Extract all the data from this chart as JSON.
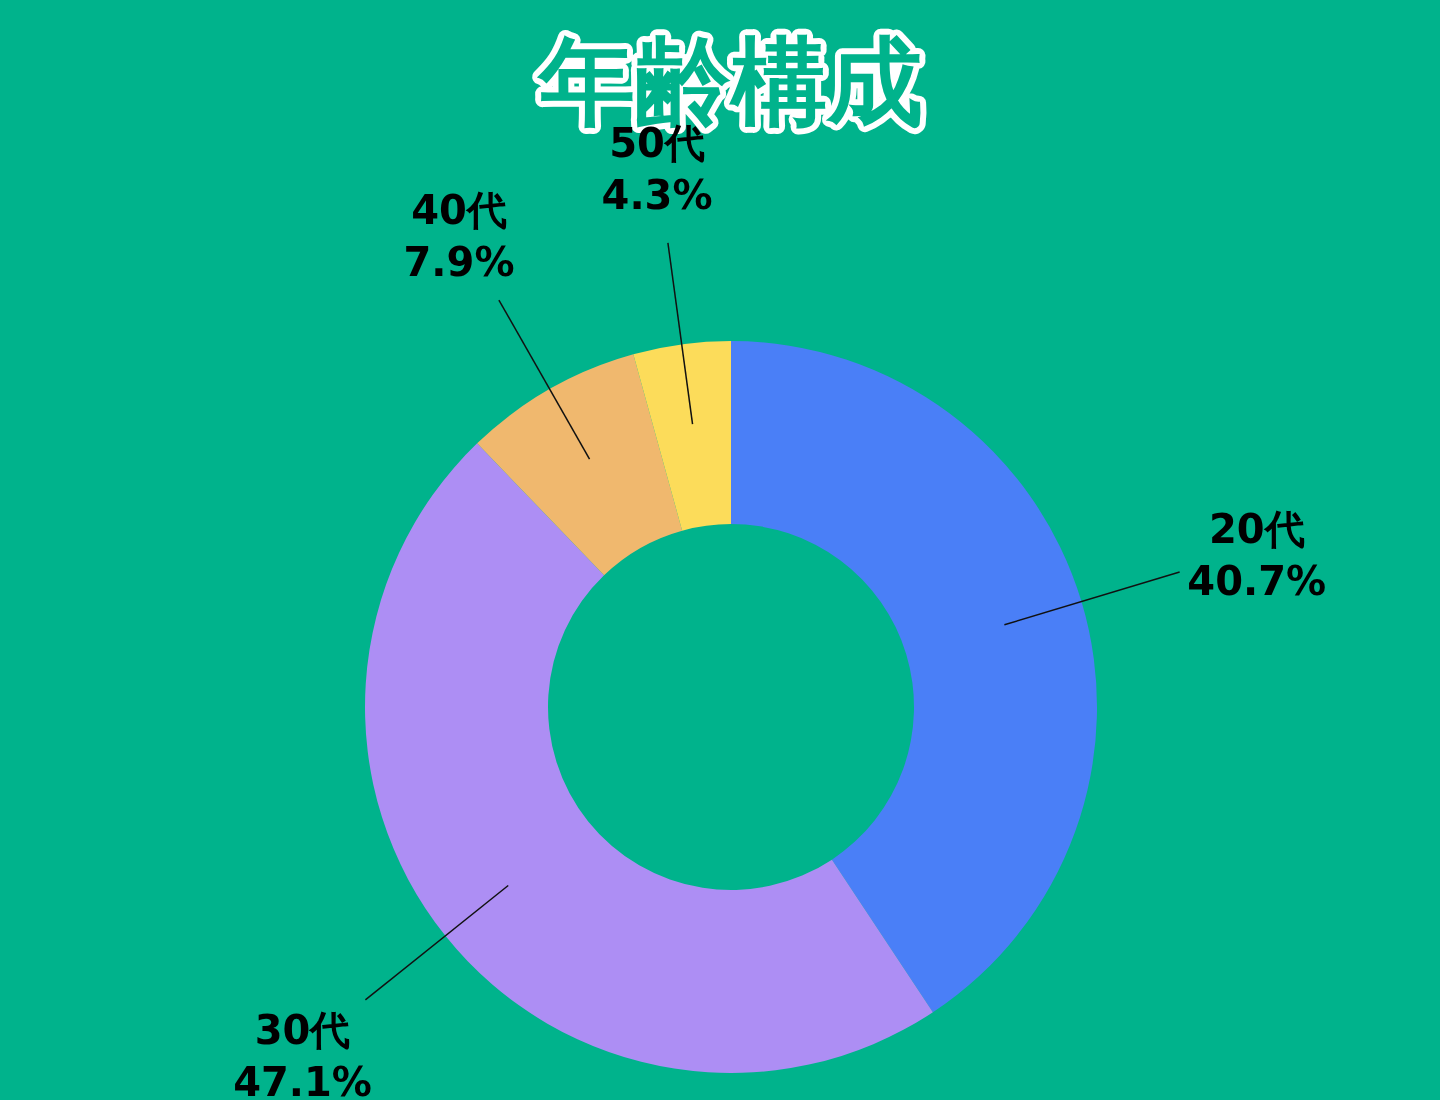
{
  "chart_data": {
    "type": "donut",
    "title": "年齢構成",
    "categories": [
      "20代",
      "30代",
      "40代",
      "50代"
    ],
    "values": [
      40.7,
      47.1,
      7.9,
      4.3
    ],
    "value_labels": [
      "40.7%",
      "47.1%",
      "7.9%",
      "4.3%"
    ],
    "colors": [
      "#4a7ff7",
      "#ad8ef4",
      "#f0b86e",
      "#fcdc5a"
    ]
  }
}
